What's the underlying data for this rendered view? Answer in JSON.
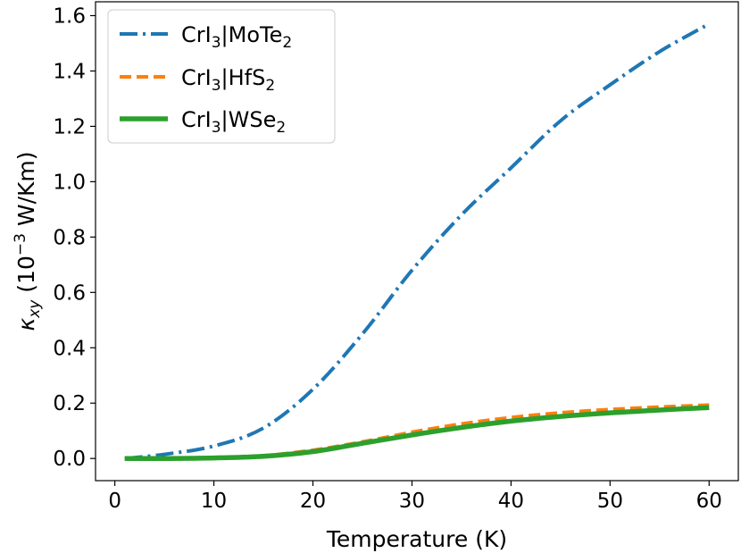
{
  "chart_data": {
    "type": "line",
    "xlabel": "Temperature (K)",
    "ylabel": {
      "symbol": "κ",
      "subscript": "xy",
      "unit": " (10",
      "exponent": "−3",
      "unit_rest": " W/Km)"
    },
    "xlim": [
      -1.95,
      62.95
    ],
    "ylim": [
      -0.08,
      1.65
    ],
    "xticks": [
      0,
      10,
      20,
      30,
      40,
      50,
      60
    ],
    "yticks": [
      0.0,
      0.2,
      0.4,
      0.6,
      0.8,
      1.0,
      1.2,
      1.4,
      1.6
    ],
    "xtick_labels": [
      "0",
      "10",
      "20",
      "30",
      "40",
      "50",
      "60"
    ],
    "ytick_labels": [
      "0.0",
      "0.2",
      "0.4",
      "0.6",
      "0.8",
      "1.0",
      "1.2",
      "1.4",
      "1.6"
    ],
    "grid": false,
    "legend_position": "top-left",
    "x": [
      1,
      5,
      10,
      15,
      20,
      25,
      30,
      35,
      40,
      45,
      50,
      55,
      60
    ],
    "series": [
      {
        "name": "CrI3|MoTe2",
        "legend": {
          "base": "CrI",
          "sub1": "3",
          "mid": "|MoTe",
          "sub2": "2"
        },
        "color": "#1f77b4",
        "style": "dashdot",
        "values": [
          0.0,
          0.015,
          0.045,
          0.11,
          0.25,
          0.45,
          0.68,
          0.88,
          1.05,
          1.22,
          1.35,
          1.47,
          1.57
        ]
      },
      {
        "name": "CrI3|HfS2",
        "legend": {
          "base": "CrI",
          "sub1": "3",
          "mid": "|HfS",
          "sub2": "2"
        },
        "color": "#ff7f0e",
        "style": "dashed",
        "values": [
          0.0,
          0.0,
          0.002,
          0.01,
          0.03,
          0.06,
          0.095,
          0.125,
          0.148,
          0.165,
          0.177,
          0.186,
          0.193
        ]
      },
      {
        "name": "CrI3|WSe2",
        "legend": {
          "base": "CrI",
          "sub1": "3",
          "mid": "|WSe",
          "sub2": "2"
        },
        "color": "#2ca02c",
        "style": "solid",
        "values": [
          0.0,
          0.0,
          0.002,
          0.008,
          0.025,
          0.055,
          0.085,
          0.112,
          0.135,
          0.152,
          0.165,
          0.175,
          0.184
        ]
      }
    ]
  }
}
